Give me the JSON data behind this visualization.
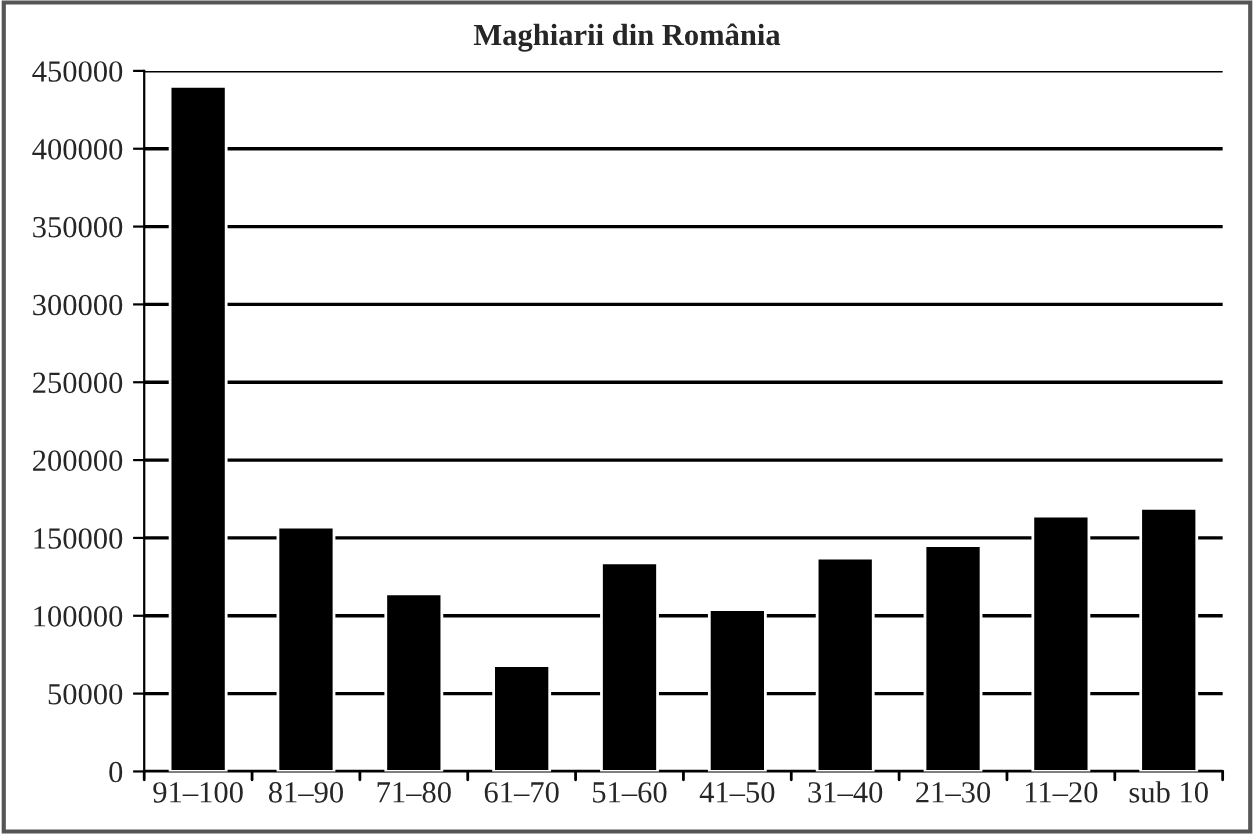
{
  "chart_data": {
    "type": "bar",
    "title": "Maghiarii din România",
    "categories": [
      "91–100",
      "81–90",
      "71–80",
      "61–70",
      "51–60",
      "41–50",
      "31–40",
      "21–30",
      "11–20",
      "sub 10"
    ],
    "values": [
      440000,
      157000,
      114000,
      68000,
      134000,
      104000,
      137000,
      145000,
      164000,
      169000
    ],
    "color": "#000000",
    "ylim": [
      0,
      450000
    ],
    "yticks": [
      0,
      50000,
      100000,
      150000,
      200000,
      250000,
      300000,
      350000,
      400000,
      450000
    ],
    "grid": "y"
  }
}
